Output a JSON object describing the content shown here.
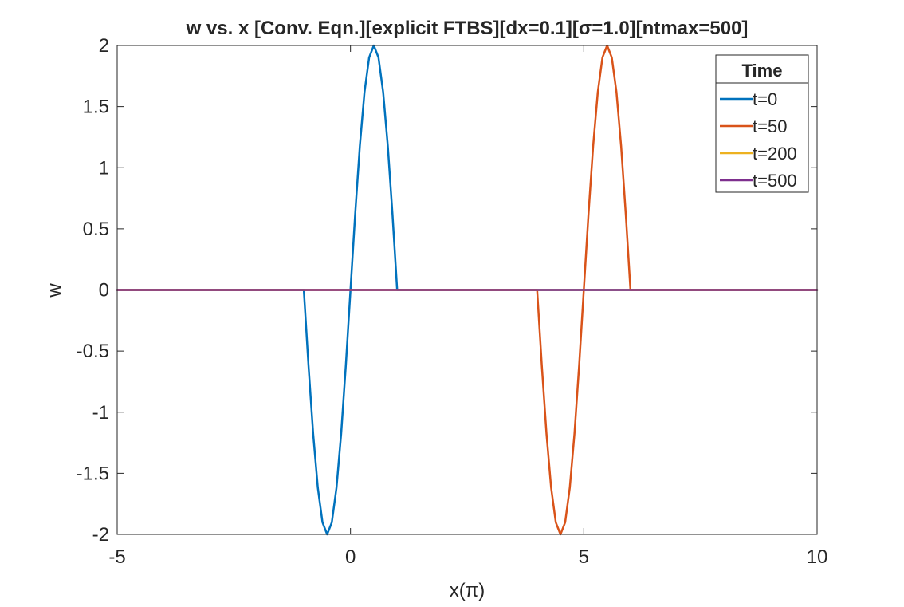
{
  "chart_data": {
    "type": "line",
    "title": "w vs. x [Conv. Eqn.][explicit FTBS][dx=0.1][σ=1.0][ntmax=500]",
    "xlabel": "x(π)",
    "ylabel": "w",
    "xlim": [
      -5,
      10
    ],
    "ylim": [
      -2,
      2
    ],
    "xticks": [
      -5,
      0,
      5,
      10
    ],
    "xtick_labels": [
      "-5",
      "0",
      "5",
      "10"
    ],
    "yticks": [
      -2,
      -1.5,
      -1,
      -0.5,
      0,
      0.5,
      1,
      1.5,
      2
    ],
    "ytick_labels": [
      "-2",
      "-1.5",
      "-1",
      "-0.5",
      "0",
      "0.5",
      "1",
      "1.5",
      "2"
    ],
    "grid": false,
    "legend": {
      "title": "Time",
      "placement": "top-right"
    },
    "series": [
      {
        "name": "t=0",
        "color": "#0072BD",
        "x": [
          -5,
          -1,
          -0.9,
          -0.8,
          -0.7,
          -0.6,
          -0.5,
          -0.4,
          -0.3,
          -0.2,
          -0.1,
          0,
          0.1,
          0.2,
          0.3,
          0.4,
          0.5,
          0.6,
          0.7,
          0.8,
          0.9,
          1,
          10
        ],
        "y": [
          0,
          0,
          -0.618,
          -1.176,
          -1.618,
          -1.902,
          -2,
          -1.902,
          -1.618,
          -1.176,
          -0.618,
          0,
          0.618,
          1.176,
          1.618,
          1.902,
          2,
          1.902,
          1.618,
          1.176,
          0.618,
          0,
          0
        ]
      },
      {
        "name": "t=50",
        "color": "#D95319",
        "x": [
          -5,
          4,
          4.1,
          4.2,
          4.3,
          4.4,
          4.5,
          4.6,
          4.7,
          4.8,
          4.9,
          5,
          5.1,
          5.2,
          5.3,
          5.4,
          5.5,
          5.6,
          5.7,
          5.8,
          5.9,
          6,
          10
        ],
        "y": [
          0,
          0,
          -0.618,
          -1.176,
          -1.618,
          -1.902,
          -2,
          -1.902,
          -1.618,
          -1.176,
          -0.618,
          0,
          0.618,
          1.176,
          1.618,
          1.902,
          2,
          1.902,
          1.618,
          1.176,
          0.618,
          0,
          0
        ]
      },
      {
        "name": "t=200",
        "color": "#EDB120",
        "x": [
          -5,
          10
        ],
        "y": [
          0,
          0
        ]
      },
      {
        "name": "t=500",
        "color": "#7E2F8E",
        "x": [
          -5,
          10
        ],
        "y": [
          0,
          0
        ]
      }
    ]
  }
}
